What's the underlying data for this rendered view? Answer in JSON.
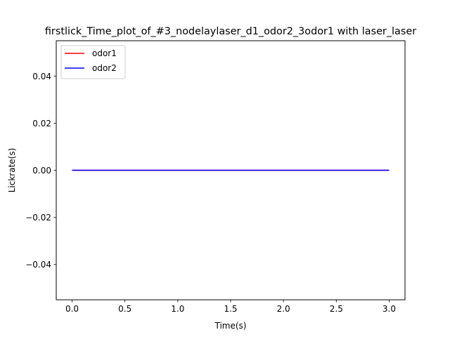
{
  "chart_data": {
    "type": "line",
    "title": "firstlick_Time_plot_of_#3_nodelaylaser_d1_odor2_3odor1 with laser_laser",
    "xlabel": "Time(s)",
    "ylabel": "Lickrate(s)",
    "xlim": [
      -0.15,
      3.15
    ],
    "ylim": [
      -0.055,
      0.055
    ],
    "xticks": [
      0.0,
      0.5,
      1.0,
      1.5,
      2.0,
      2.5,
      3.0
    ],
    "xtick_labels": [
      "0.0",
      "0.5",
      "1.0",
      "1.5",
      "2.0",
      "2.5",
      "3.0"
    ],
    "yticks": [
      -0.04,
      -0.02,
      0.0,
      0.02,
      0.04
    ],
    "ytick_labels": [
      "−0.04",
      "−0.02",
      "0.00",
      "0.02",
      "0.04"
    ],
    "grid": false,
    "legend_position": "top-left",
    "series": [
      {
        "name": "odor1",
        "color": "#ff0000",
        "x": [
          0.0,
          3.0
        ],
        "y": [
          0.0,
          0.0
        ]
      },
      {
        "name": "odor2",
        "color": "#0000ff",
        "x": [
          0.0,
          3.0
        ],
        "y": [
          0.0,
          0.0
        ]
      }
    ]
  }
}
